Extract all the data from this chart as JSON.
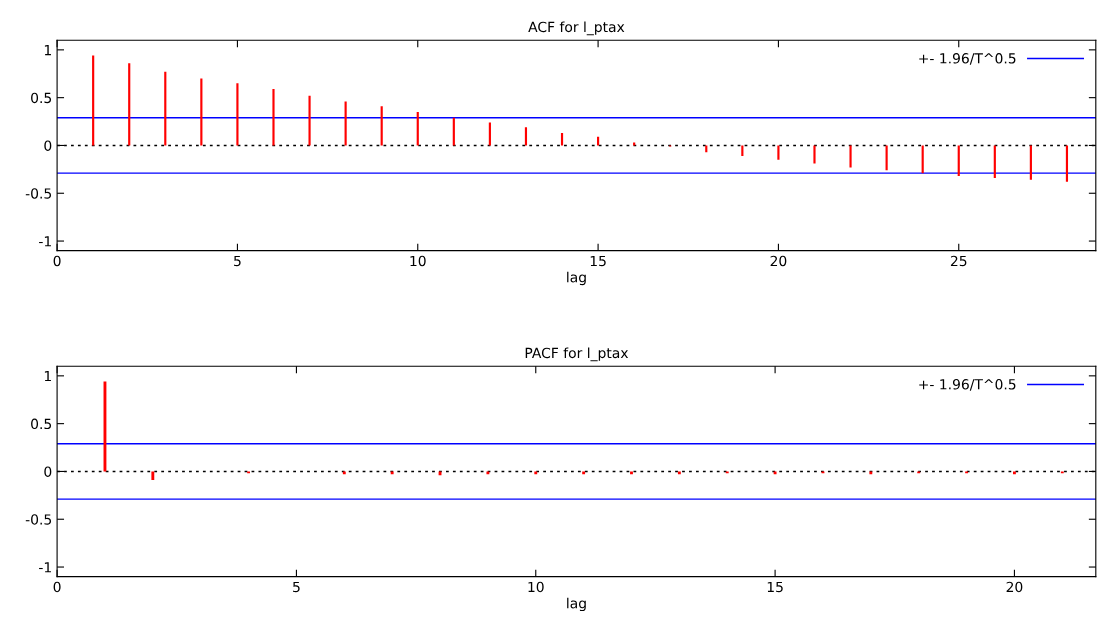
{
  "chart_data": [
    {
      "type": "bar",
      "title": "ACF for l_ptax",
      "xlabel": "lag",
      "x": [
        1,
        2,
        3,
        4,
        5,
        6,
        7,
        8,
        9,
        10,
        11,
        12,
        13,
        14,
        15,
        16,
        17,
        18,
        19,
        20,
        21,
        22,
        23,
        24,
        25,
        26,
        27,
        28
      ],
      "series": [
        {
          "color": "#ff0000",
          "values": [
            0.94,
            0.86,
            0.77,
            0.7,
            0.65,
            0.59,
            0.52,
            0.46,
            0.41,
            0.35,
            0.29,
            0.24,
            0.19,
            0.13,
            0.09,
            0.03,
            -0.01,
            -0.07,
            -0.11,
            -0.15,
            -0.19,
            -0.23,
            -0.26,
            -0.29,
            -0.32,
            -0.34,
            -0.36,
            -0.38
          ]
        }
      ],
      "xlim": [
        0,
        28.8
      ],
      "xticks": [
        0,
        5,
        10,
        15,
        20,
        25
      ],
      "ylim": [
        -1.1,
        1.1
      ],
      "yticks": [
        -1,
        -0.5,
        0,
        0.5,
        1
      ],
      "ref_lines": [
        {
          "axis": "y",
          "value": 0.29,
          "label": "+- 1.96/T^0.5",
          "color": "#0000ff",
          "line_style": "solid"
        },
        {
          "axis": "y",
          "value": -0.29,
          "color": "#0000ff",
          "line_style": "solid"
        },
        {
          "axis": "y",
          "value": 0,
          "color": "#000000",
          "line_style": "dotted"
        }
      ],
      "legend": "top right",
      "grid": false
    },
    {
      "type": "bar",
      "title": "PACF for l_ptax",
      "xlabel": "lag",
      "x": [
        1,
        2,
        3,
        4,
        5,
        6,
        7,
        8,
        9,
        10,
        11,
        12,
        13,
        14,
        15,
        16,
        17,
        18,
        19,
        20,
        21
      ],
      "series": [
        {
          "color": "#ff0000",
          "values": [
            0.94,
            -0.09,
            0.0,
            -0.02,
            0.0,
            -0.03,
            -0.03,
            -0.04,
            -0.03,
            -0.03,
            -0.03,
            -0.03,
            -0.03,
            -0.02,
            -0.03,
            -0.02,
            -0.03,
            -0.02,
            -0.02,
            -0.03,
            -0.02
          ]
        }
      ],
      "xlim": [
        0,
        21.7
      ],
      "xticks": [
        0,
        5,
        10,
        15,
        20
      ],
      "ylim": [
        -1.1,
        1.1
      ],
      "yticks": [
        -1,
        -0.5,
        0,
        0.5,
        1
      ],
      "ref_lines": [
        {
          "axis": "y",
          "value": 0.29,
          "label": "+- 1.96/T^0.5",
          "color": "#0000ff",
          "line_style": "solid"
        },
        {
          "axis": "y",
          "value": -0.29,
          "color": "#0000ff",
          "line_style": "solid"
        },
        {
          "axis": "y",
          "value": 0,
          "color": "#000000",
          "line_style": "dotted"
        }
      ],
      "legend": "top right",
      "grid": false
    }
  ]
}
